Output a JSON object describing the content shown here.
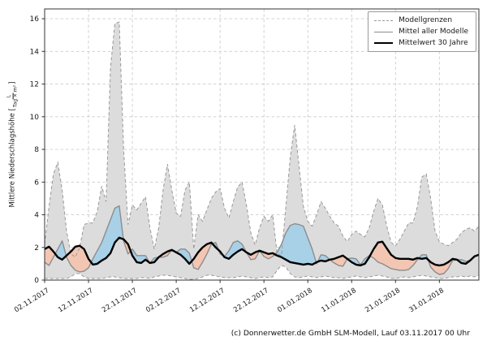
{
  "figure": {
    "footer": "(c) Donnerwetter.de GmbH SLM-Modell, Lauf 03.11.2017 00 Uhr"
  },
  "legend": {
    "position": "upper right",
    "items": [
      {
        "label": "Modellgrenzen",
        "style": "dashed-gray"
      },
      {
        "label": "Mittel aller Modelle",
        "style": "solid-gray"
      },
      {
        "label": "Mittelwert 30 Jahre",
        "style": "thick-black"
      }
    ]
  },
  "axes": {
    "ylabel_prefix": "Mittlere Niederschlagshöhe [",
    "ylabel_unit_numerator": "L",
    "ylabel_unit_denominator": "Tag × m²",
    "ylabel_suffix": "]"
  },
  "colors": {
    "band_fill": "#dcdcdc",
    "band_edge": "#999999",
    "model_mean_line": "#8c8c8c",
    "climate_mean_line": "#000000",
    "above_normal_fill": "#a8d1e7",
    "below_normal_fill": "#f3c6b4",
    "grid": "#cccccc",
    "spine": "#333333",
    "tick_label": "#1a1a1a"
  },
  "chart_data": {
    "type": "line",
    "title": "",
    "xlabel": "",
    "ylabel": "Mittlere Niederschlagshöhe [L/(Tag × m²)]",
    "grid": true,
    "legend_position": "upper right",
    "x_note": "daily index, day 0 = 02.11.2017",
    "xlim": [
      0,
      99
    ],
    "ylim": [
      0,
      16.6
    ],
    "y_ticks": [
      0,
      2,
      4,
      6,
      8,
      10,
      12,
      14,
      16
    ],
    "x_tick_days": [
      0,
      10,
      20,
      30,
      40,
      50,
      60,
      70,
      80,
      90
    ],
    "x_tick_labels": [
      "02.11.2017",
      "12.11.2017",
      "22.11.2017",
      "02.12.2017",
      "12.12.2017",
      "22.12.2017",
      "01.01.2018",
      "11.01.2018",
      "21.01.2018",
      "31.01.2018"
    ],
    "series": [
      {
        "name": "Modellgrenze oben (Modellgrenzen)",
        "role": "upper_bound",
        "line": "dashed",
        "values": [
          2.2,
          4.5,
          6.5,
          7.2,
          5.5,
          3.0,
          1.6,
          1.4,
          2.0,
          3.4,
          3.5,
          3.5,
          4.2,
          5.75,
          4.8,
          13.0,
          15.7,
          15.8,
          8.0,
          3.4,
          4.6,
          4.3,
          4.7,
          5.1,
          3.2,
          1.9,
          3.2,
          5.5,
          7.1,
          5.5,
          4.1,
          3.9,
          5.5,
          6.0,
          1.9,
          4.0,
          3.6,
          4.3,
          5.0,
          5.4,
          5.6,
          4.4,
          3.8,
          4.8,
          5.7,
          6.0,
          4.6,
          2.9,
          2.15,
          3.2,
          3.9,
          3.6,
          4.0,
          1.6,
          1.5,
          4.5,
          7.5,
          9.5,
          7.0,
          4.5,
          3.6,
          3.3,
          4.0,
          4.8,
          4.4,
          3.9,
          3.5,
          3.3,
          2.7,
          2.35,
          2.8,
          3.0,
          2.8,
          2.65,
          3.2,
          4.2,
          5.0,
          4.6,
          3.3,
          2.3,
          2.1,
          2.5,
          3.0,
          3.5,
          3.5,
          4.5,
          6.3,
          6.5,
          5.0,
          3.0,
          2.35,
          2.2,
          2.1,
          2.3,
          2.5,
          2.9,
          3.1,
          3.2,
          3.0,
          3.3
        ]
      },
      {
        "name": "Modellgrenze unten (Modellgrenzen)",
        "role": "lower_bound",
        "line": "dashed",
        "values": [
          0.1,
          0.1,
          0.1,
          0.1,
          0.1,
          0.1,
          0.2,
          0.4,
          0.4,
          0.2,
          0.1,
          0.1,
          0.1,
          0.1,
          0.15,
          0.2,
          0.2,
          0.15,
          0.1,
          0.1,
          0.1,
          0.1,
          0.15,
          0.15,
          0.1,
          0.2,
          0.25,
          0.3,
          0.3,
          0.25,
          0.2,
          0.15,
          0.1,
          0.05,
          0.05,
          0.1,
          0.2,
          0.3,
          0.3,
          0.25,
          0.2,
          0.15,
          0.15,
          0.15,
          0.2,
          0.25,
          0.2,
          0.15,
          0.1,
          0.15,
          0.2,
          0.15,
          0.2,
          0.6,
          0.9,
          0.8,
          0.4,
          0.2,
          0.15,
          0.2,
          0.25,
          0.2,
          0.15,
          0.2,
          0.25,
          0.2,
          0.15,
          0.15,
          0.1,
          0.15,
          0.2,
          0.25,
          0.2,
          0.15,
          0.2,
          0.25,
          0.3,
          0.25,
          0.2,
          0.1,
          0.1,
          0.15,
          0.2,
          0.15,
          0.2,
          0.25,
          0.3,
          0.25,
          0.2,
          0.15,
          0.1,
          0.1,
          0.15,
          0.2,
          0.2,
          0.25,
          0.2,
          0.25,
          0.2,
          0.3
        ]
      },
      {
        "name": "Mittel aller Modelle",
        "role": "model_mean",
        "line": "solid",
        "values": [
          1.1,
          0.9,
          1.4,
          1.9,
          2.4,
          1.4,
          0.9,
          0.6,
          0.5,
          0.55,
          0.75,
          1.3,
          1.8,
          2.3,
          3.0,
          3.7,
          4.4,
          4.55,
          2.4,
          1.6,
          1.9,
          1.5,
          1.5,
          1.5,
          1.05,
          1.35,
          1.4,
          1.4,
          1.5,
          1.85,
          1.7,
          1.9,
          1.9,
          1.65,
          0.75,
          0.65,
          1.1,
          1.6,
          2.2,
          2.3,
          1.6,
          1.45,
          1.8,
          2.3,
          2.4,
          2.2,
          1.7,
          1.25,
          1.3,
          1.8,
          1.45,
          1.3,
          1.45,
          1.7,
          2.2,
          2.9,
          3.35,
          3.45,
          3.4,
          3.3,
          2.6,
          1.9,
          1.0,
          1.55,
          1.5,
          1.25,
          1.05,
          0.9,
          0.85,
          1.3,
          1.35,
          1.3,
          0.95,
          1.3,
          1.5,
          1.35,
          1.1,
          1.0,
          0.85,
          0.7,
          0.65,
          0.6,
          0.6,
          0.65,
          0.9,
          1.25,
          1.55,
          1.55,
          0.8,
          0.5,
          0.35,
          0.4,
          0.7,
          1.2,
          1.25,
          1.25,
          1.15,
          1.2,
          1.45,
          1.55
        ]
      },
      {
        "name": "Mittelwert 30 Jahre",
        "role": "climate_mean",
        "line": "solid-thick",
        "values": [
          1.9,
          2.05,
          1.75,
          1.4,
          1.25,
          1.5,
          1.75,
          2.05,
          2.1,
          1.9,
          1.3,
          0.95,
          1.0,
          1.2,
          1.35,
          1.65,
          2.3,
          2.6,
          2.5,
          2.2,
          1.5,
          1.1,
          1.05,
          1.25,
          1.05,
          1.1,
          1.4,
          1.6,
          1.75,
          1.85,
          1.7,
          1.55,
          1.3,
          1.0,
          1.3,
          1.7,
          2.0,
          2.2,
          2.3,
          2.0,
          1.75,
          1.4,
          1.3,
          1.55,
          1.75,
          1.9,
          1.7,
          1.55,
          1.7,
          1.8,
          1.7,
          1.6,
          1.65,
          1.5,
          1.4,
          1.25,
          1.1,
          1.05,
          1.0,
          0.95,
          1.0,
          0.95,
          1.1,
          1.2,
          1.15,
          1.25,
          1.3,
          1.4,
          1.5,
          1.3,
          1.1,
          0.95,
          0.9,
          1.0,
          1.4,
          1.9,
          2.3,
          2.35,
          1.95,
          1.55,
          1.35,
          1.3,
          1.3,
          1.3,
          1.25,
          1.35,
          1.3,
          1.35,
          1.1,
          0.95,
          0.9,
          0.95,
          1.1,
          1.3,
          1.25,
          1.05,
          1.0,
          1.2,
          1.45,
          1.55
        ]
      }
    ],
    "fills": [
      {
        "name": "Modellgrenzen-Band",
        "between": [
          "upper_bound",
          "lower_bound"
        ]
      },
      {
        "name": "Modellmittel über 30-Jahre-Mittel",
        "between": [
          "model_mean",
          "climate_mean"
        ],
        "when": "above"
      },
      {
        "name": "Modellmittel unter 30-Jahre-Mittel",
        "between": [
          "model_mean",
          "climate_mean"
        ],
        "when": "below"
      }
    ]
  }
}
